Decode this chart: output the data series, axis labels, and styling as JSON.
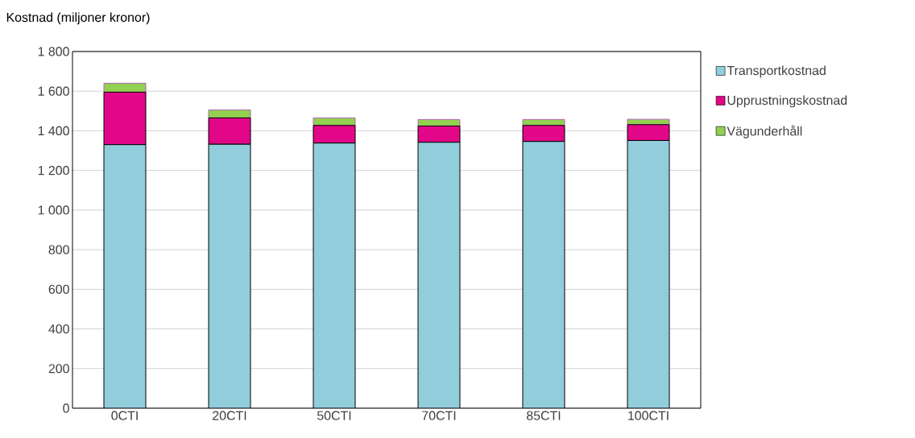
{
  "chart_data": {
    "type": "bar",
    "stacked": true,
    "ylabel": "Kostnad (miljoner kronor)",
    "categories": [
      "0CTI",
      "20CTI",
      "50CTI",
      "70CTI",
      "85CTI",
      "100CTI"
    ],
    "series": [
      {
        "name": "Transportkostnad",
        "color": "#92cddc",
        "values": [
          1330,
          1332,
          1338,
          1342,
          1346,
          1351
        ]
      },
      {
        "name": "Upprustningskostnad",
        "color": "#e20788",
        "values": [
          265,
          133,
          89,
          82,
          81,
          80
        ]
      },
      {
        "name": "Vägunderhåll",
        "color": "#92d050",
        "values": [
          45,
          40,
          38,
          33,
          30,
          27
        ]
      }
    ],
    "ylim": [
      0,
      1800
    ],
    "yticks": [
      0,
      200,
      400,
      600,
      800,
      {
        "value": 1000,
        "label": "1 000"
      },
      {
        "value": 1200,
        "label": "1 200"
      },
      {
        "value": 1400,
        "label": "1 400"
      },
      {
        "value": 1600,
        "label": "1 600"
      },
      {
        "value": 1800,
        "label": "1 800"
      }
    ],
    "grid": "y",
    "legend": "right"
  }
}
